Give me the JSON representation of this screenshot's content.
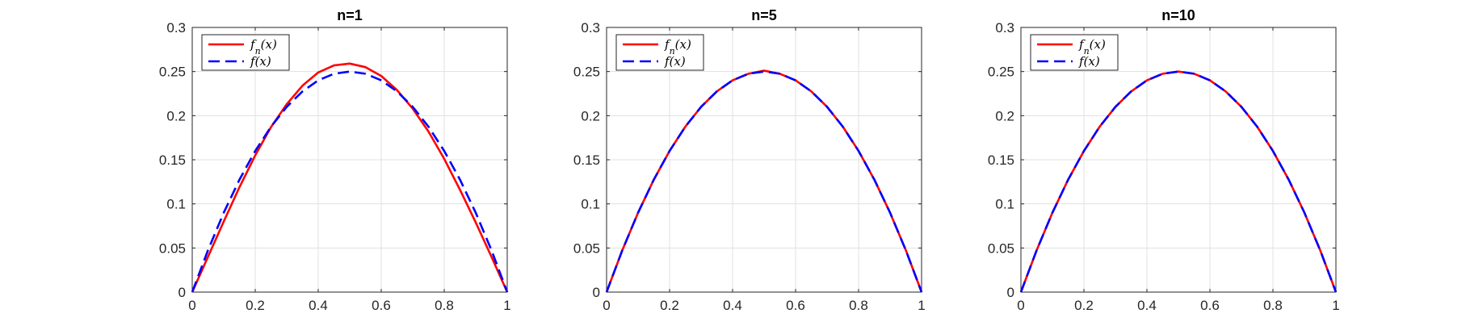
{
  "chart_data": [
    {
      "type": "line",
      "title": "n=1",
      "xlim": [
        0,
        1
      ],
      "ylim": [
        0,
        0.3
      ],
      "xticks": [
        "0",
        "0.2",
        "0.4",
        "0.6",
        "0.8",
        "1"
      ],
      "yticks": [
        "0",
        "0.05",
        "0.1",
        "0.15",
        "0.2",
        "0.25",
        "0.3"
      ],
      "grid": true,
      "legend_position": "top-left",
      "series": [
        {
          "name": "f_n(x)",
          "color": "#ff0000",
          "style": "solid",
          "x": [
            0,
            0.05,
            0.1,
            0.15,
            0.2,
            0.25,
            0.3,
            0.35,
            0.4,
            0.45,
            0.5,
            0.55,
            0.6,
            0.65,
            0.7,
            0.75,
            0.8,
            0.85,
            0.9,
            0.95,
            1
          ],
          "y": [
            0,
            0.04,
            0.08,
            0.119,
            0.155,
            0.187,
            0.213,
            0.234,
            0.249,
            0.257,
            0.259,
            0.255,
            0.245,
            0.229,
            0.208,
            0.182,
            0.151,
            0.116,
            0.079,
            0.04,
            0
          ]
        },
        {
          "name": "f(x)",
          "color": "#0000ff",
          "style": "dashed",
          "x": [
            0,
            0.05,
            0.1,
            0.15,
            0.2,
            0.25,
            0.3,
            0.35,
            0.4,
            0.45,
            0.5,
            0.55,
            0.6,
            0.65,
            0.7,
            0.75,
            0.8,
            0.85,
            0.9,
            0.95,
            1
          ],
          "y": [
            0,
            0.0475,
            0.09,
            0.1275,
            0.16,
            0.1875,
            0.21,
            0.2275,
            0.24,
            0.2475,
            0.25,
            0.2475,
            0.24,
            0.2275,
            0.21,
            0.1875,
            0.16,
            0.1275,
            0.09,
            0.0475,
            0
          ]
        }
      ]
    },
    {
      "type": "line",
      "title": "n=5",
      "xlim": [
        0,
        1
      ],
      "ylim": [
        0,
        0.3
      ],
      "xticks": [
        "0",
        "0.2",
        "0.4",
        "0.6",
        "0.8",
        "1"
      ],
      "yticks": [
        "0",
        "0.05",
        "0.1",
        "0.15",
        "0.2",
        "0.25",
        "0.3"
      ],
      "grid": true,
      "legend_position": "top-left",
      "series": [
        {
          "name": "f_n(x)",
          "color": "#ff0000",
          "style": "solid",
          "x": [
            0,
            0.05,
            0.1,
            0.15,
            0.2,
            0.25,
            0.3,
            0.35,
            0.4,
            0.45,
            0.5,
            0.55,
            0.6,
            0.65,
            0.7,
            0.75,
            0.8,
            0.85,
            0.9,
            0.95,
            1
          ],
          "y": [
            0,
            0.0475,
            0.09,
            0.1275,
            0.16,
            0.1875,
            0.21,
            0.2275,
            0.24,
            0.2475,
            0.251,
            0.2475,
            0.24,
            0.2275,
            0.21,
            0.1875,
            0.16,
            0.1275,
            0.09,
            0.0475,
            0
          ]
        },
        {
          "name": "f(x)",
          "color": "#0000ff",
          "style": "dashed",
          "x": [
            0,
            0.05,
            0.1,
            0.15,
            0.2,
            0.25,
            0.3,
            0.35,
            0.4,
            0.45,
            0.5,
            0.55,
            0.6,
            0.65,
            0.7,
            0.75,
            0.8,
            0.85,
            0.9,
            0.95,
            1
          ],
          "y": [
            0,
            0.0475,
            0.09,
            0.1275,
            0.16,
            0.1875,
            0.21,
            0.2275,
            0.24,
            0.2475,
            0.25,
            0.2475,
            0.24,
            0.2275,
            0.21,
            0.1875,
            0.16,
            0.1275,
            0.09,
            0.0475,
            0
          ]
        }
      ]
    },
    {
      "type": "line",
      "title": "n=10",
      "xlim": [
        0,
        1
      ],
      "ylim": [
        0,
        0.3
      ],
      "xticks": [
        "0",
        "0.2",
        "0.4",
        "0.6",
        "0.8",
        "1"
      ],
      "yticks": [
        "0",
        "0.05",
        "0.1",
        "0.15",
        "0.2",
        "0.25",
        "0.3"
      ],
      "grid": true,
      "legend_position": "top-left",
      "series": [
        {
          "name": "f_n(x)",
          "color": "#ff0000",
          "style": "solid",
          "x": [
            0,
            0.05,
            0.1,
            0.15,
            0.2,
            0.25,
            0.3,
            0.35,
            0.4,
            0.45,
            0.5,
            0.55,
            0.6,
            0.65,
            0.7,
            0.75,
            0.8,
            0.85,
            0.9,
            0.95,
            1
          ],
          "y": [
            0,
            0.0475,
            0.09,
            0.1275,
            0.16,
            0.1875,
            0.21,
            0.2275,
            0.24,
            0.2475,
            0.25,
            0.2475,
            0.24,
            0.2275,
            0.21,
            0.1875,
            0.16,
            0.1275,
            0.09,
            0.0475,
            0
          ]
        },
        {
          "name": "f(x)",
          "color": "#0000ff",
          "style": "dashed",
          "x": [
            0,
            0.05,
            0.1,
            0.15,
            0.2,
            0.25,
            0.3,
            0.35,
            0.4,
            0.45,
            0.5,
            0.55,
            0.6,
            0.65,
            0.7,
            0.75,
            0.8,
            0.85,
            0.9,
            0.95,
            1
          ],
          "y": [
            0,
            0.0475,
            0.09,
            0.1275,
            0.16,
            0.1875,
            0.21,
            0.2275,
            0.24,
            0.2475,
            0.25,
            0.2475,
            0.24,
            0.2275,
            0.21,
            0.1875,
            0.16,
            0.1275,
            0.09,
            0.0475,
            0
          ]
        }
      ]
    }
  ]
}
